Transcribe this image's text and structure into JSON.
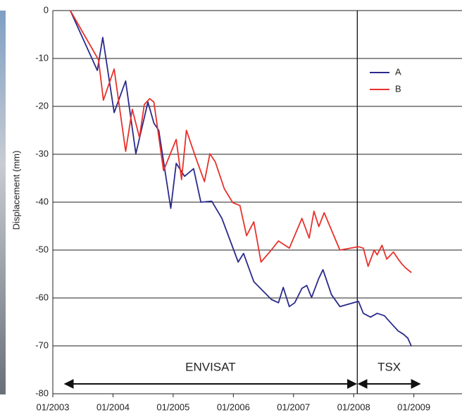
{
  "chart_data": {
    "type": "line",
    "y_label": "Displacement (mm)",
    "xlim": [
      2003,
      2009.8
    ],
    "ylim": [
      -80,
      0
    ],
    "xticks": [
      {
        "value": 2003,
        "label": "01/2003"
      },
      {
        "value": 2004,
        "label": "01/2004"
      },
      {
        "value": 2005,
        "label": "01/2005"
      },
      {
        "value": 2006,
        "label": "01/2006"
      },
      {
        "value": 2007,
        "label": "01/2007"
      },
      {
        "value": 2008,
        "label": "01/2008"
      },
      {
        "value": 2009,
        "label": "01/2009"
      }
    ],
    "yticks": [
      0,
      -10,
      -20,
      -30,
      -40,
      -50,
      -60,
      -70,
      -80
    ],
    "grid": true,
    "legend": "upper right",
    "vertical_line": 2008.06,
    "annotations": [
      {
        "text": "ENVISAT",
        "x_from": 2003.2,
        "x_to": 2008.04
      },
      {
        "text": "TSX",
        "x_from": 2008.08,
        "x_to": 2009.1
      }
    ],
    "series": [
      {
        "name": "A",
        "color": "#2a2a8c",
        "x": [
          2003.29,
          2003.74,
          2003.83,
          2004.02,
          2004.21,
          2004.38,
          2004.58,
          2004.68,
          2004.76,
          2004.96,
          2005.05,
          2005.19,
          2005.34,
          2005.46,
          2005.64,
          2005.81,
          2006.08,
          2006.17,
          2006.34,
          2006.63,
          2006.75,
          2006.83,
          2006.93,
          2007.02,
          2007.14,
          2007.22,
          2007.3,
          2007.42,
          2007.49,
          2007.63,
          2007.77,
          2008.08,
          2008.16,
          2008.28,
          2008.39,
          2008.51,
          2008.63,
          2008.74,
          2008.83,
          2008.9,
          2008.96
        ],
        "values": [
          0,
          -12.5,
          -5.6,
          -21.3,
          -14.7,
          -29.9,
          -19.1,
          -23.5,
          -25,
          -41.3,
          -31.9,
          -34.6,
          -33,
          -40,
          -39.8,
          -43.4,
          -52.5,
          -50.7,
          -56.6,
          -60.3,
          -61,
          -57.8,
          -61.8,
          -61,
          -58,
          -57.4,
          -59.9,
          -55.9,
          -54.1,
          -59.3,
          -61.8,
          -60.7,
          -63.2,
          -64,
          -63.2,
          -63.7,
          -65.4,
          -66.9,
          -67.6,
          -68.4,
          -70.1
        ]
      },
      {
        "name": "B",
        "color": "#e8312b",
        "x": [
          2003.29,
          2003.76,
          2003.84,
          2004.02,
          2004.21,
          2004.32,
          2004.44,
          2004.52,
          2004.61,
          2004.68,
          2004.84,
          2005.05,
          2005.14,
          2005.22,
          2005.38,
          2005.52,
          2005.61,
          2005.7,
          2005.85,
          2005.99,
          2006.11,
          2006.22,
          2006.34,
          2006.46,
          2006.63,
          2006.75,
          2006.93,
          2007.14,
          2007.26,
          2007.34,
          2007.42,
          2007.51,
          2007.77,
          2008.08,
          2008.16,
          2008.24,
          2008.34,
          2008.39,
          2008.47,
          2008.55,
          2008.66,
          2008.74,
          2008.8,
          2008.86,
          2008.96
        ],
        "values": [
          0,
          -10.3,
          -18.7,
          -12.2,
          -29.4,
          -20.6,
          -26.5,
          -19.6,
          -18.4,
          -19.1,
          -33.4,
          -26.9,
          -35.3,
          -25,
          -30.9,
          -35.7,
          -29.9,
          -31.6,
          -37.2,
          -40.1,
          -40.7,
          -47,
          -44.1,
          -52.5,
          -50,
          -48.1,
          -49.6,
          -43.4,
          -47.5,
          -41.9,
          -45.1,
          -42.2,
          -50,
          -49.3,
          -49.6,
          -53.4,
          -50,
          -51,
          -49,
          -51.9,
          -50.4,
          -51.9,
          -52.9,
          -53.7,
          -54.7
        ]
      }
    ]
  }
}
